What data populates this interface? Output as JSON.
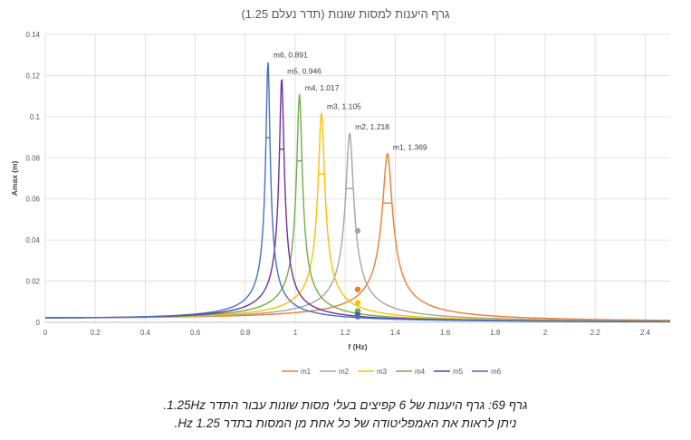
{
  "chart_data": {
    "type": "line",
    "title": "גרף היענות למסות שונות (תדר נעלם 1.25)",
    "xlabel": "f (Hz)",
    "ylabel": "Amax (m)",
    "xlim": [
      0,
      2.5
    ],
    "ylim": [
      0,
      0.14
    ],
    "x_ticks": [
      "0",
      "0.2",
      "0.4",
      "0.6",
      "0.8",
      "1",
      "1.2",
      "1.4",
      "1.6",
      "1.8",
      "2",
      "2.2",
      "2.4"
    ],
    "y_ticks": [
      "0",
      "0.02",
      "0.04",
      "0.06",
      "0.08",
      "0.1",
      "0.12",
      "0.14"
    ],
    "grid": true,
    "legend_position": "bottom",
    "forcing_frequency": 1.25,
    "series": [
      {
        "name": "m1",
        "color": "#ED7D31",
        "peak_x": 1.369,
        "peak_y": 0.082,
        "label": "m1, 1.369",
        "marker_y": 0.016
      },
      {
        "name": "m2",
        "color": "#A5A5A5",
        "peak_x": 1.218,
        "peak_y": 0.092,
        "label": "m2, 1.218",
        "marker_y": 0.0445
      },
      {
        "name": "m3",
        "color": "#FFC000",
        "peak_x": 1.105,
        "peak_y": 0.102,
        "label": "m3, 1.105",
        "marker_y": 0.0095
      },
      {
        "name": "m4",
        "color": "#70AD47",
        "peak_x": 1.017,
        "peak_y": 0.111,
        "label": "m4, 1.017",
        "marker_y": 0.0055
      },
      {
        "name": "m5",
        "color": "#7030A0",
        "peak_x": 0.946,
        "peak_y": 0.119,
        "label": "m5, 0.946",
        "marker_y": 0.0035
      },
      {
        "name": "m6",
        "color": "#4472C4",
        "peak_x": 0.891,
        "peak_y": 0.127,
        "label": "m6, 0.891",
        "marker_y": 0.0028
      }
    ]
  },
  "caption": {
    "line1": "גרף 69: גרף היענות של 6 קפיצים בעלי מסות שונות עבור התדר 1.25Hz.",
    "line2": "ניתן לראות את האמפליטודה של כל אחת מן המסות בתדר Hz 1.25."
  }
}
